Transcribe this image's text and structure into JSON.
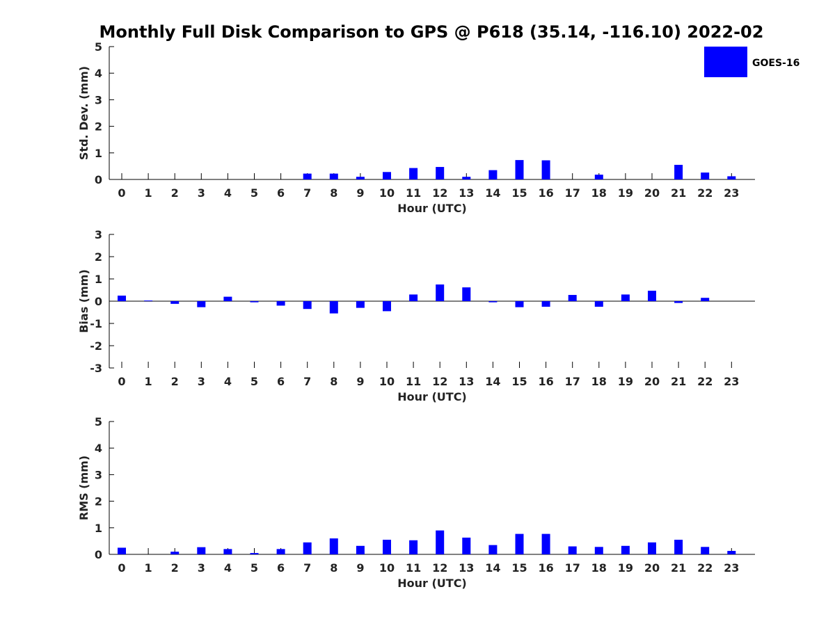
{
  "title": "Monthly Full Disk Comparison to GPS @ P618 (35.14, -116.10) 2022-02",
  "legend": {
    "label": "GOES-16",
    "color": "#0000ff"
  },
  "chart_data": [
    {
      "type": "bar",
      "name": "std-dev",
      "xlabel": "Hour (UTC)",
      "ylabel": "Std. Dev. (mm)",
      "ylim": [
        0,
        5
      ],
      "yticks": [
        0,
        1,
        2,
        3,
        4,
        5
      ],
      "categories": [
        "0",
        "1",
        "2",
        "3",
        "4",
        "5",
        "6",
        "7",
        "8",
        "9",
        "10",
        "11",
        "12",
        "13",
        "14",
        "15",
        "16",
        "17",
        "18",
        "19",
        "20",
        "21",
        "22",
        "23"
      ],
      "series": [
        {
          "name": "GOES-16",
          "color": "#0000ff",
          "values": [
            0,
            0,
            0,
            0,
            0,
            0,
            0,
            0.22,
            0.22,
            0.1,
            0.28,
            0.43,
            0.47,
            0.1,
            0.35,
            0.73,
            0.72,
            0,
            0.18,
            0,
            0,
            0.55,
            0.26,
            0.12
          ]
        }
      ]
    },
    {
      "type": "bar",
      "name": "bias",
      "xlabel": "Hour (UTC)",
      "ylabel": "Bias (mm)",
      "ylim": [
        -3,
        3
      ],
      "yticks": [
        -3,
        -2,
        -1,
        0,
        1,
        2,
        3
      ],
      "categories": [
        "0",
        "1",
        "2",
        "3",
        "4",
        "5",
        "6",
        "7",
        "8",
        "9",
        "10",
        "11",
        "12",
        "13",
        "14",
        "15",
        "16",
        "17",
        "18",
        "19",
        "20",
        "21",
        "22",
        "23"
      ],
      "series": [
        {
          "name": "GOES-16",
          "color": "#0000ff",
          "values": [
            0.25,
            0.03,
            -0.12,
            -0.27,
            0.2,
            -0.05,
            -0.2,
            -0.35,
            -0.55,
            -0.3,
            -0.45,
            0.3,
            0.75,
            0.62,
            -0.05,
            -0.27,
            -0.25,
            0.28,
            -0.25,
            0.3,
            0.47,
            -0.08,
            0.15,
            0
          ]
        }
      ]
    },
    {
      "type": "bar",
      "name": "rms",
      "xlabel": "Hour (UTC)",
      "ylabel": "RMS (mm)",
      "ylim": [
        0,
        5
      ],
      "yticks": [
        0,
        1,
        2,
        3,
        4,
        5
      ],
      "categories": [
        "0",
        "1",
        "2",
        "3",
        "4",
        "5",
        "6",
        "7",
        "8",
        "9",
        "10",
        "11",
        "12",
        "13",
        "14",
        "15",
        "16",
        "17",
        "18",
        "19",
        "20",
        "21",
        "22",
        "23"
      ],
      "series": [
        {
          "name": "GOES-16",
          "color": "#0000ff",
          "values": [
            0.25,
            0,
            0.1,
            0.27,
            0.2,
            0.05,
            0.2,
            0.45,
            0.6,
            0.32,
            0.55,
            0.53,
            0.9,
            0.63,
            0.35,
            0.77,
            0.77,
            0.3,
            0.28,
            0.32,
            0.45,
            0.55,
            0.28,
            0.13
          ]
        }
      ]
    }
  ]
}
